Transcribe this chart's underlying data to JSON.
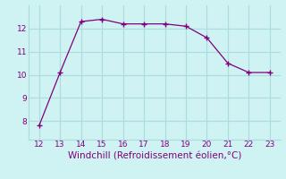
{
  "x": [
    12,
    13,
    14,
    15,
    16,
    17,
    18,
    19,
    20,
    21,
    22,
    23
  ],
  "y": [
    7.8,
    10.1,
    12.3,
    12.4,
    12.2,
    12.2,
    12.2,
    12.1,
    11.6,
    10.5,
    10.1,
    10.1
  ],
  "line_color": "#800080",
  "marker": "+",
  "marker_size": 4,
  "bg_color": "#cff2f2",
  "grid_color": "#aadddd",
  "xlabel": "Windchill (Refroidissement éolien,°C)",
  "xlabel_color": "#800080",
  "xlabel_fontsize": 7.5,
  "tick_color": "#800080",
  "tick_fontsize": 6.5,
  "xlim": [
    11.5,
    23.5
  ],
  "ylim": [
    7.2,
    13.0
  ],
  "yticks": [
    8,
    9,
    10,
    11,
    12
  ],
  "xticks": [
    12,
    13,
    14,
    15,
    16,
    17,
    18,
    19,
    20,
    21,
    22,
    23
  ]
}
